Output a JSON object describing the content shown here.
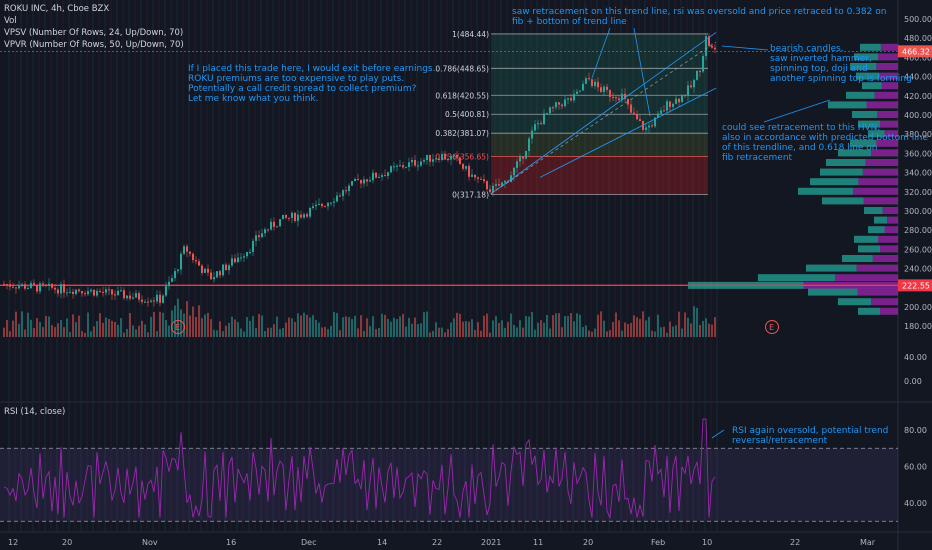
{
  "legend": {
    "symbol": "ROKU INC, 4h, Cboe BZX",
    "vol": "Vol",
    "vpsv": "VPSV (Number Of Rows, 24, Up/Down, 70)",
    "vpvr": "VPVR (Number Of Rows, 50, Up/Down, 70)",
    "rsi": "RSI (14, close)"
  },
  "annotations": {
    "trade": "If I placed this trade here, I would exit before earnings.\nROKU premiums are too expensive to play puts.\nPotentially a call credit spread to collect premium?\nLet me know what you think.",
    "trendline": "saw retracement on this trend line, rsi was oversold and price retraced to 0.382 on\nfib + bottom of trend line",
    "candles": "bearish candles.\nsaw inverted hammer,\nspinning top, doji and\nanother spinning top is forming",
    "hvn": "could see retracement to this HVN,\nalso in accordance with predicted bottom line\nof this trendline, and 0.618 line on\nfib retracement",
    "rsi": "RSI again oversold, potential trend\nreversal/retracement",
    "earnings_marker": "E"
  },
  "chart_data": {
    "type": "candlestick",
    "price_axis": {
      "ticks": [
        180,
        200,
        220,
        240,
        260,
        280,
        300,
        320,
        340,
        360,
        380,
        400,
        420,
        440,
        460,
        480,
        500
      ],
      "range": [
        175,
        505
      ],
      "last_price_label": "466.32",
      "level_label": "222.55",
      "level_value": 222.55
    },
    "volume_axis": {
      "ticks": [
        "40.00",
        "0.00"
      ]
    },
    "rsi_axis": {
      "ticks": [
        "80.00",
        "60.00",
        "40.00"
      ],
      "range": [
        30,
        88
      ],
      "upper": 70,
      "lower": 30
    },
    "time_axis": [
      "12",
      "20",
      "Nov",
      "16",
      "Dec",
      "14",
      "22",
      "2021",
      "11",
      "20",
      "Feb",
      "10",
      "22",
      "Mar"
    ],
    "fib_levels": [
      {
        "label": "1(484.44)",
        "ratio": 1,
        "value": 484.44
      },
      {
        "label": "0.786(448.65)",
        "ratio": 0.786,
        "value": 448.65
      },
      {
        "label": "0.618(420.55)",
        "ratio": 0.618,
        "value": 420.55
      },
      {
        "label": "0.5(400.81)",
        "ratio": 0.5,
        "value": 400.81
      },
      {
        "label": "0.382(381.07)",
        "ratio": 0.382,
        "value": 381.07
      },
      {
        "label": "0.236(356.65)",
        "ratio": 0.236,
        "value": 356.65
      },
      {
        "label": "0(317.18)",
        "ratio": 0,
        "value": 317.18
      }
    ],
    "colors": {
      "up": "#26a69a",
      "down": "#ef5350",
      "fib": "#787b86",
      "rsi": "#9c27b0",
      "note": "#2196f3",
      "level": "#f23645"
    }
  }
}
